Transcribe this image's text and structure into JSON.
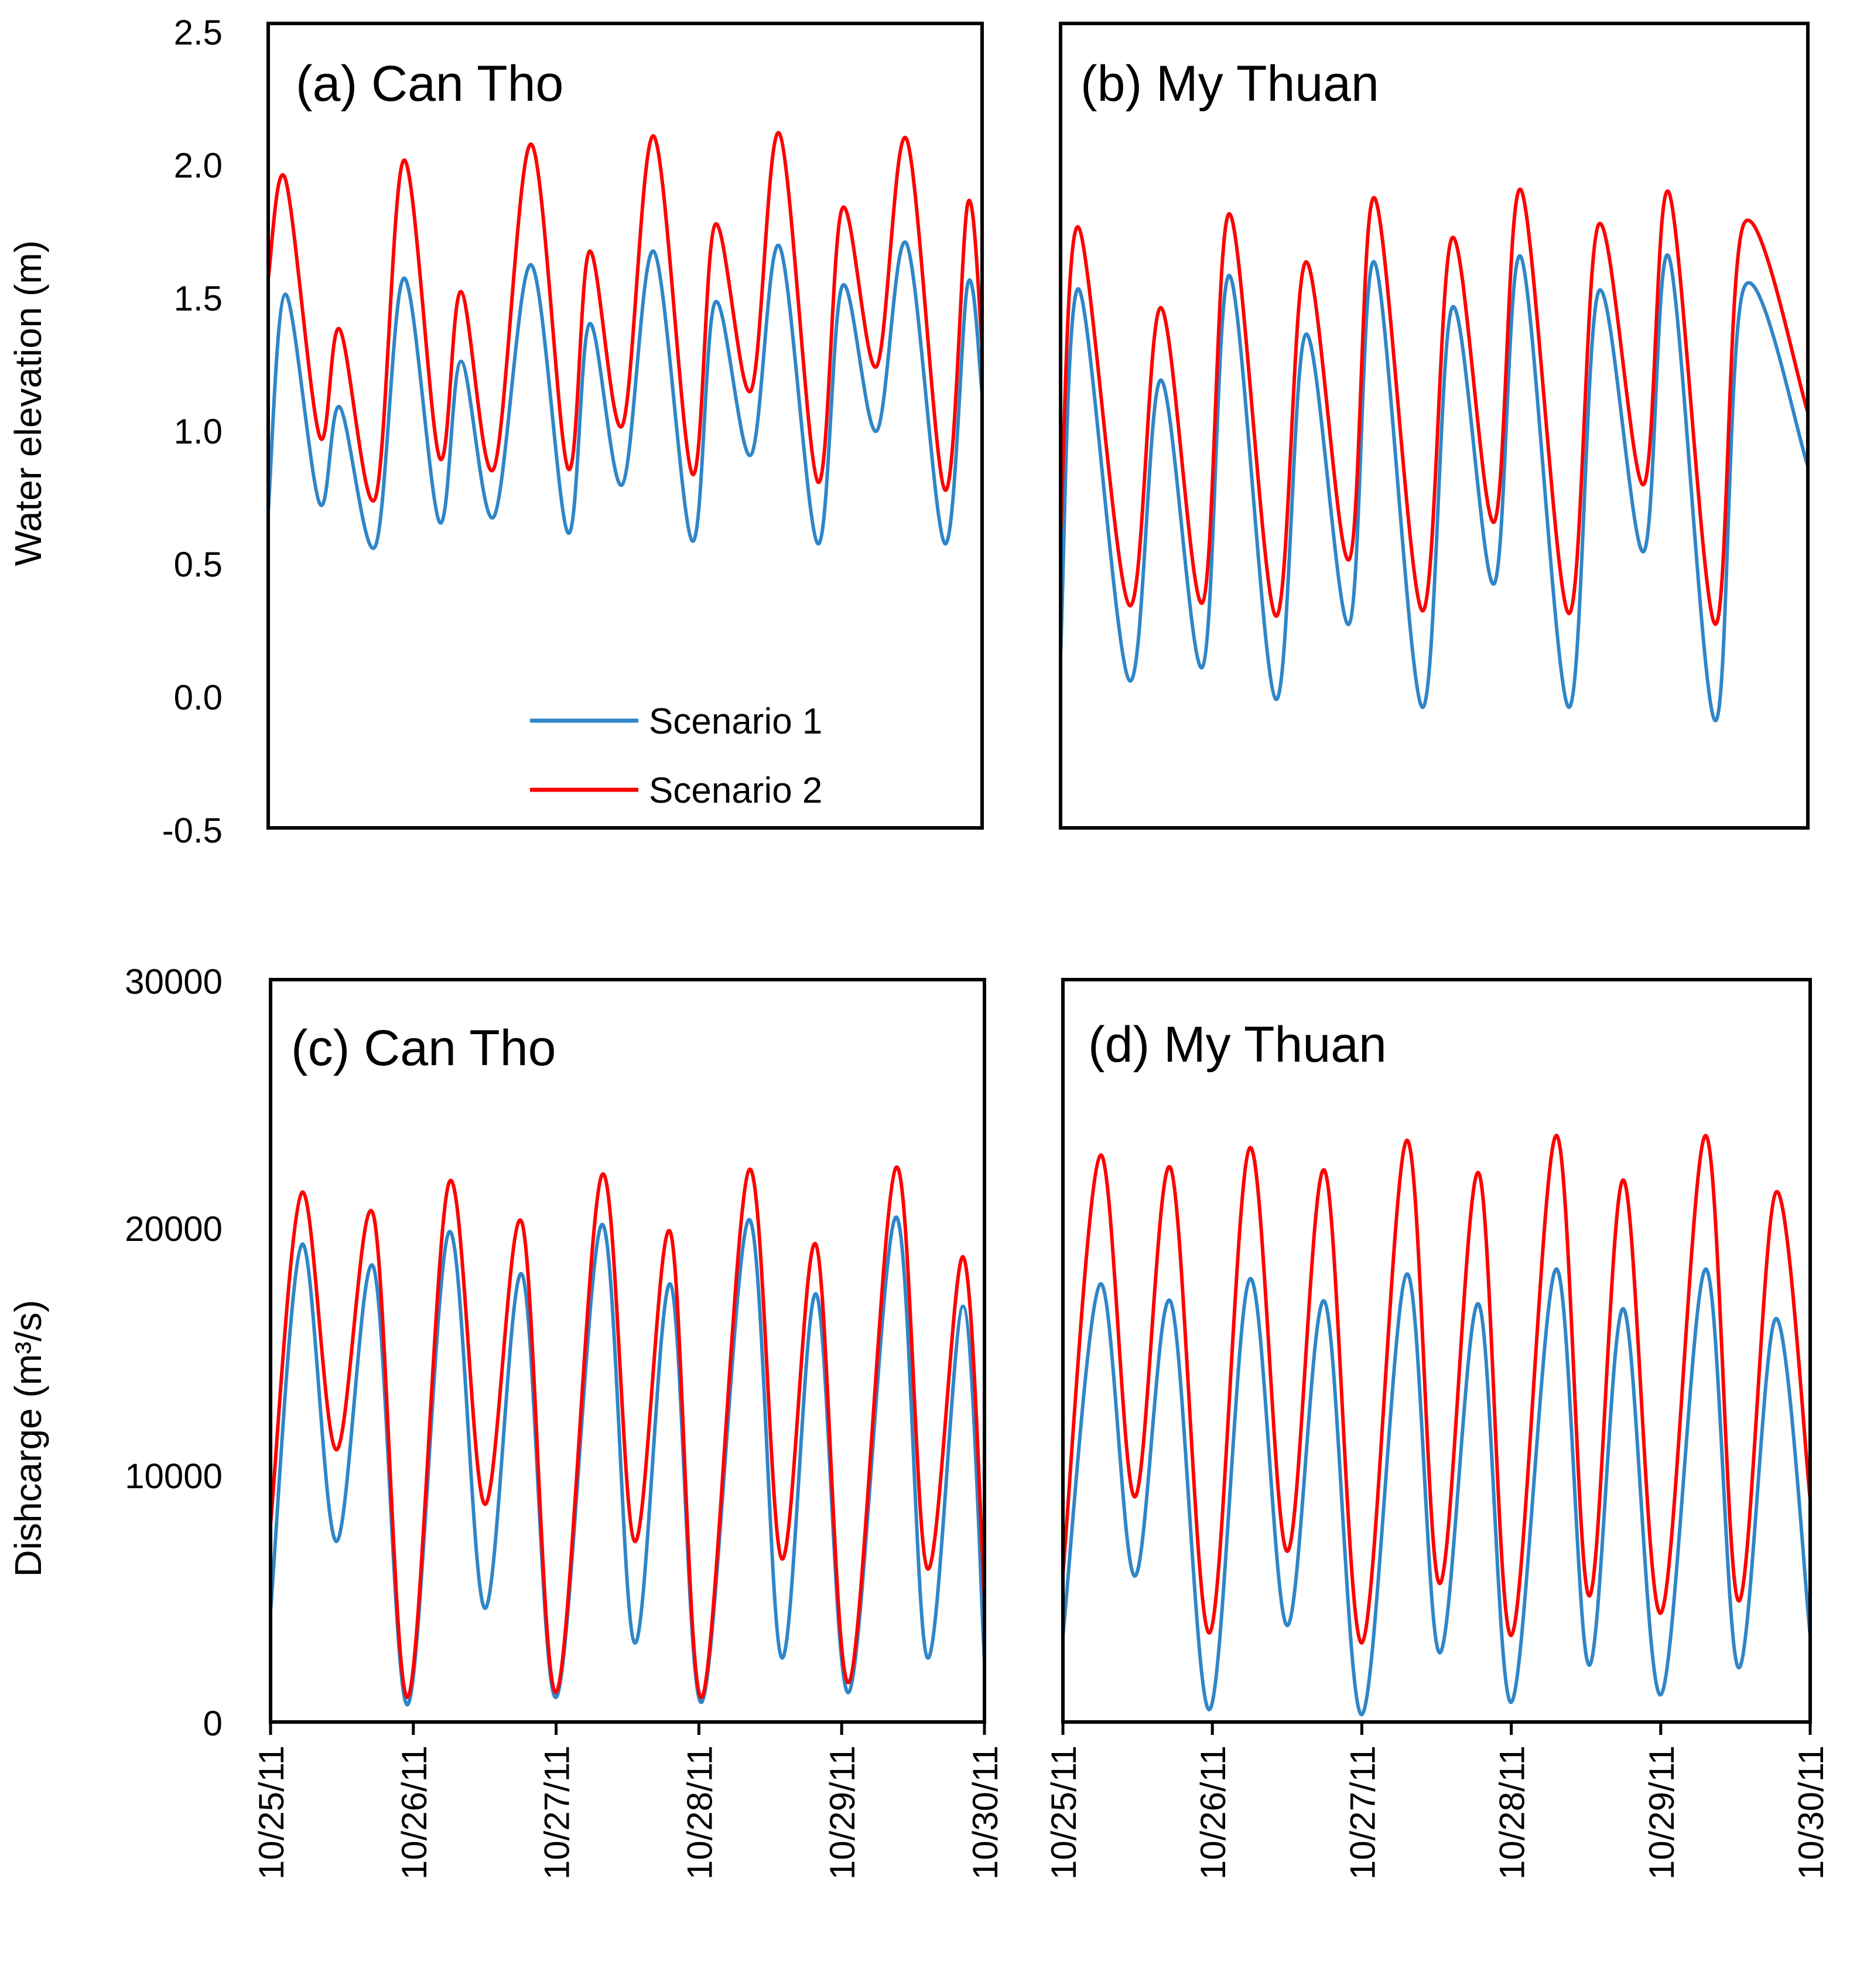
{
  "colors": {
    "scenario1": "#2f86c8",
    "scenario2": "#ff0000",
    "frame": "#000000"
  },
  "legend": {
    "scenario1": "Scenario 1",
    "scenario2": "Scenario 2",
    "placement": "bottom-center of panel (a)"
  },
  "axes": {
    "elevation_ylabel": "Water elevation (m)",
    "discharge_ylabel": "Dishcarge (m³/s)",
    "elevation_ticks": [
      "2.5",
      "2.0",
      "1.5",
      "1.0",
      "0.5",
      "0.0",
      "-0.5"
    ],
    "discharge_ticks": [
      "30000",
      "20000",
      "10000",
      "0"
    ],
    "date_ticks": [
      "10/25/11",
      "10/26/11",
      "10/27/11",
      "10/28/11",
      "10/29/11",
      "10/30/11"
    ]
  },
  "chart_data": [
    {
      "id": "a",
      "type": "line",
      "title": "(a) Can Tho",
      "xlabel": "",
      "ylabel": "Water elevation (m)",
      "xlim": [
        0,
        5
      ],
      "ylim": [
        -0.5,
        2.5
      ],
      "x_unit": "days since 10/25/11",
      "series": [
        {
          "name": "Scenario 1",
          "points": [
            [
              0,
              0.68
            ],
            [
              0.12,
              1.49
            ],
            [
              0.36,
              0.71
            ],
            [
              0.5,
              1.07
            ],
            [
              0.75,
              0.55
            ],
            [
              0.95,
              1.55
            ],
            [
              1.2,
              0.64
            ],
            [
              1.35,
              1.24
            ],
            [
              1.58,
              0.66
            ],
            [
              1.84,
              1.6
            ],
            [
              2.1,
              0.6
            ],
            [
              2.25,
              1.38
            ],
            [
              2.48,
              0.78
            ],
            [
              2.7,
              1.65
            ],
            [
              2.97,
              0.57
            ],
            [
              3.13,
              1.46
            ],
            [
              3.38,
              0.89
            ],
            [
              3.58,
              1.67
            ],
            [
              3.85,
              0.56
            ],
            [
              4.02,
              1.52
            ],
            [
              4.26,
              0.98
            ],
            [
              4.47,
              1.68
            ],
            [
              4.74,
              0.56
            ],
            [
              4.9,
              1.53
            ],
            [
              5,
              1.12
            ]
          ]
        },
        {
          "name": "Scenario 2",
          "points": [
            [
              0,
              1.55
            ],
            [
              0.12,
              1.92
            ],
            [
              0.36,
              0.96
            ],
            [
              0.5,
              1.36
            ],
            [
              0.75,
              0.73
            ],
            [
              0.95,
              1.99
            ],
            [
              1.2,
              0.88
            ],
            [
              1.35,
              1.5
            ],
            [
              1.58,
              0.84
            ],
            [
              1.84,
              2.05
            ],
            [
              2.1,
              0.84
            ],
            [
              2.25,
              1.65
            ],
            [
              2.48,
              1.0
            ],
            [
              2.7,
              2.08
            ],
            [
              2.97,
              0.82
            ],
            [
              3.13,
              1.75
            ],
            [
              3.38,
              1.13
            ],
            [
              3.58,
              2.09
            ],
            [
              3.85,
              0.79
            ],
            [
              4.02,
              1.81
            ],
            [
              4.26,
              1.22
            ],
            [
              4.47,
              2.07
            ],
            [
              4.74,
              0.76
            ],
            [
              4.9,
              1.83
            ],
            [
              5,
              1.3
            ]
          ]
        }
      ]
    },
    {
      "id": "b",
      "type": "line",
      "title": "(b) My Thuan",
      "xlabel": "",
      "ylabel": "",
      "xlim": [
        0,
        5
      ],
      "ylim": [
        -0.5,
        2.5
      ],
      "x_unit": "days since 10/25/11",
      "series": [
        {
          "name": "Scenario 1",
          "points": [
            [
              0,
              0.15
            ],
            [
              0.12,
              1.51
            ],
            [
              0.46,
              0.05
            ],
            [
              0.67,
              1.17
            ],
            [
              0.95,
              0.1
            ],
            [
              1.13,
              1.56
            ],
            [
              1.44,
              -0.02
            ],
            [
              1.64,
              1.34
            ],
            [
              1.93,
              0.26
            ],
            [
              2.1,
              1.61
            ],
            [
              2.42,
              -0.05
            ],
            [
              2.62,
              1.44
            ],
            [
              2.9,
              0.41
            ],
            [
              3.08,
              1.63
            ],
            [
              3.4,
              -0.05
            ],
            [
              3.6,
              1.5
            ],
            [
              3.9,
              0.53
            ],
            [
              4.07,
              1.63
            ],
            [
              4.38,
              -0.1
            ],
            [
              4.57,
              1.51
            ],
            [
              5,
              0.85
            ]
          ]
        },
        {
          "name": "Scenario 2",
          "points": [
            [
              0,
              0.6
            ],
            [
              0.12,
              1.74
            ],
            [
              0.46,
              0.33
            ],
            [
              0.67,
              1.44
            ],
            [
              0.95,
              0.34
            ],
            [
              1.13,
              1.79
            ],
            [
              1.44,
              0.29
            ],
            [
              1.64,
              1.61
            ],
            [
              1.93,
              0.5
            ],
            [
              2.1,
              1.85
            ],
            [
              2.42,
              0.31
            ],
            [
              2.62,
              1.7
            ],
            [
              2.9,
              0.64
            ],
            [
              3.08,
              1.88
            ],
            [
              3.4,
              0.3
            ],
            [
              3.6,
              1.75
            ],
            [
              3.9,
              0.78
            ],
            [
              4.07,
              1.87
            ],
            [
              4.38,
              0.26
            ],
            [
              4.57,
              1.75
            ],
            [
              5,
              1.05
            ]
          ]
        }
      ]
    },
    {
      "id": "c",
      "type": "line",
      "title": "(c) Can Tho",
      "xlabel": "",
      "ylabel": "Dishcarge (m³/s)",
      "xlim": [
        0,
        5
      ],
      "ylim": [
        0,
        30000
      ],
      "x_unit": "days since 10/25/11",
      "series": [
        {
          "name": "Scenario 1",
          "points": [
            [
              0,
              4500
            ],
            [
              0.22,
              19300
            ],
            [
              0.46,
              7300
            ],
            [
              0.72,
              18400
            ],
            [
              0.96,
              700
            ],
            [
              1.25,
              19800
            ],
            [
              1.5,
              4600
            ],
            [
              1.76,
              18100
            ],
            [
              2.0,
              1000
            ],
            [
              2.32,
              20100
            ],
            [
              2.55,
              3200
            ],
            [
              2.8,
              17700
            ],
            [
              3.02,
              800
            ],
            [
              3.35,
              20300
            ],
            [
              3.58,
              2600
            ],
            [
              3.82,
              17300
            ],
            [
              4.05,
              1200
            ],
            [
              4.38,
              20400
            ],
            [
              4.6,
              2600
            ],
            [
              4.85,
              16800
            ],
            [
              5,
              2500
            ]
          ]
        },
        {
          "name": "Scenario 2",
          "points": [
            [
              0,
              8000
            ],
            [
              0.22,
              21400
            ],
            [
              0.46,
              11000
            ],
            [
              0.72,
              20500
            ],
            [
              0.96,
              1000
            ],
            [
              1.25,
              21800
            ],
            [
              1.5,
              8800
            ],
            [
              1.76,
              20200
            ],
            [
              2.0,
              1200
            ],
            [
              2.32,
              22100
            ],
            [
              2.55,
              7300
            ],
            [
              2.8,
              19800
            ],
            [
              3.02,
              1000
            ],
            [
              3.35,
              22300
            ],
            [
              3.58,
              6600
            ],
            [
              3.82,
              19300
            ],
            [
              4.05,
              1600
            ],
            [
              4.38,
              22400
            ],
            [
              4.6,
              6200
            ],
            [
              4.85,
              18800
            ],
            [
              5,
              5000
            ]
          ]
        }
      ]
    },
    {
      "id": "d",
      "type": "line",
      "title": "(d) My Thuan",
      "xlabel": "",
      "ylabel": "",
      "xlim": [
        0,
        5
      ],
      "ylim": [
        0,
        30000
      ],
      "x_unit": "days since 10/25/11",
      "series": [
        {
          "name": "Scenario 1",
          "points": [
            [
              0,
              3500
            ],
            [
              0.25,
              17700
            ],
            [
              0.48,
              5900
            ],
            [
              0.72,
              17000
            ],
            [
              0.98,
              500
            ],
            [
              1.25,
              17900
            ],
            [
              1.5,
              3900
            ],
            [
              1.75,
              17000
            ],
            [
              2.0,
              300
            ],
            [
              2.3,
              18100
            ],
            [
              2.52,
              2800
            ],
            [
              2.78,
              16900
            ],
            [
              3.0,
              800
            ],
            [
              3.3,
              18300
            ],
            [
              3.52,
              2300
            ],
            [
              3.75,
              16700
            ],
            [
              4.0,
              1100
            ],
            [
              4.3,
              18300
            ],
            [
              4.52,
              2200
            ],
            [
              4.77,
              16300
            ],
            [
              5,
              3500
            ]
          ]
        },
        {
          "name": "Scenario 2",
          "points": [
            [
              0,
              6000
            ],
            [
              0.25,
              22900
            ],
            [
              0.48,
              9100
            ],
            [
              0.72,
              22400
            ],
            [
              0.98,
              3600
            ],
            [
              1.25,
              23200
            ],
            [
              1.5,
              6900
            ],
            [
              1.75,
              22300
            ],
            [
              2.0,
              3200
            ],
            [
              2.3,
              23500
            ],
            [
              2.52,
              5600
            ],
            [
              2.78,
              22200
            ],
            [
              3.0,
              3500
            ],
            [
              3.3,
              23700
            ],
            [
              3.52,
              5100
            ],
            [
              3.75,
              21900
            ],
            [
              4.0,
              4400
            ],
            [
              4.3,
              23700
            ],
            [
              4.52,
              4900
            ],
            [
              4.77,
              21400
            ],
            [
              5,
              9000
            ]
          ]
        }
      ]
    }
  ]
}
